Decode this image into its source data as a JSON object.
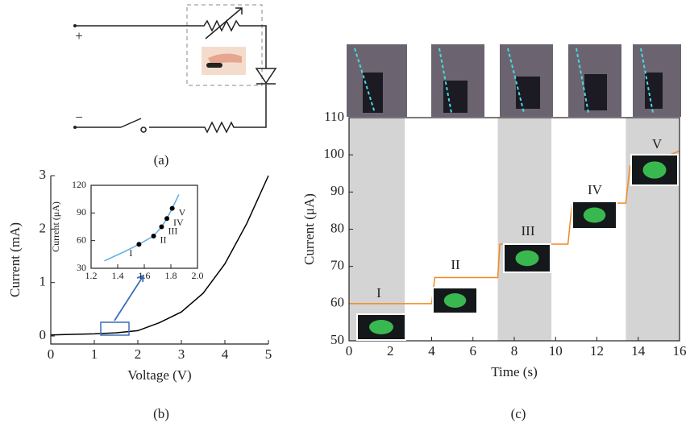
{
  "panel_a": {
    "plus": "+",
    "minus": "−",
    "caption": "(a)"
  },
  "chart_data": [
    {
      "type": "line",
      "caption": "(b)",
      "x_label": "Voltage (V)",
      "y_label": "Current (mA)",
      "xlim": [
        0,
        5
      ],
      "ylim": [
        -0.15,
        3
      ],
      "xticks": [
        0,
        1,
        2,
        3,
        4,
        5
      ],
      "yticks": [
        0,
        1,
        2,
        3
      ],
      "series": [
        {
          "color": "#000000",
          "x": [
            0,
            0.5,
            1,
            1.5,
            2,
            2.5,
            3,
            3.5,
            4,
            4.5,
            5
          ],
          "values": [
            0.02,
            0.03,
            0.04,
            0.06,
            0.1,
            0.25,
            0.45,
            0.8,
            1.35,
            2.1,
            3.0
          ]
        }
      ]
    },
    {
      "type": "line",
      "y_label": "Current (μA)",
      "xlim": [
        1.2,
        2.0
      ],
      "ylim": [
        30,
        120
      ],
      "xticks": [
        1.2,
        1.4,
        1.6,
        1.8,
        {
          "value": 2,
          "label": "2.0"
        }
      ],
      "yticks": [
        30,
        60,
        90,
        120
      ],
      "series": [
        {
          "color": "#5aaee0",
          "x": [
            1.3,
            1.45,
            1.56,
            1.67,
            1.73,
            1.77,
            1.81,
            1.86
          ],
          "values": [
            38,
            48,
            56,
            65,
            75,
            84,
            95,
            110
          ]
        }
      ],
      "points": {
        "color": "#000000",
        "x": [
          1.56,
          1.67,
          1.73,
          1.77,
          1.81
        ],
        "values": [
          56,
          65,
          75,
          84,
          95
        ],
        "labels": [
          "I",
          "II",
          "III",
          "IV",
          "V"
        ]
      }
    },
    {
      "type": "line",
      "caption": "(c)",
      "x_label": "Time (s)",
      "y_label": "Current (μA)",
      "xlim": [
        0,
        16
      ],
      "ylim": [
        50,
        110
      ],
      "xticks": [
        0,
        2,
        4,
        6,
        8,
        10,
        12,
        14,
        16
      ],
      "yticks": [
        50,
        60,
        70,
        80,
        90,
        100,
        110
      ],
      "shaded_regions": [
        [
          0,
          2.7
        ],
        [
          7.2,
          9.8
        ],
        [
          13.4,
          16
        ]
      ],
      "shade_color": "#d4d4d4",
      "series": [
        {
          "color": "#f08a24",
          "x": [
            0,
            4.0,
            4.15,
            7.2,
            7.3,
            10.6,
            10.8,
            13.4,
            13.6,
            14.5,
            15.5,
            16
          ],
          "values": [
            60,
            60,
            67,
            67,
            76,
            76,
            87,
            87,
            97,
            98,
            100,
            101
          ]
        }
      ],
      "annotations": [
        "I",
        "II",
        "III",
        "IV",
        "V"
      ]
    }
  ]
}
